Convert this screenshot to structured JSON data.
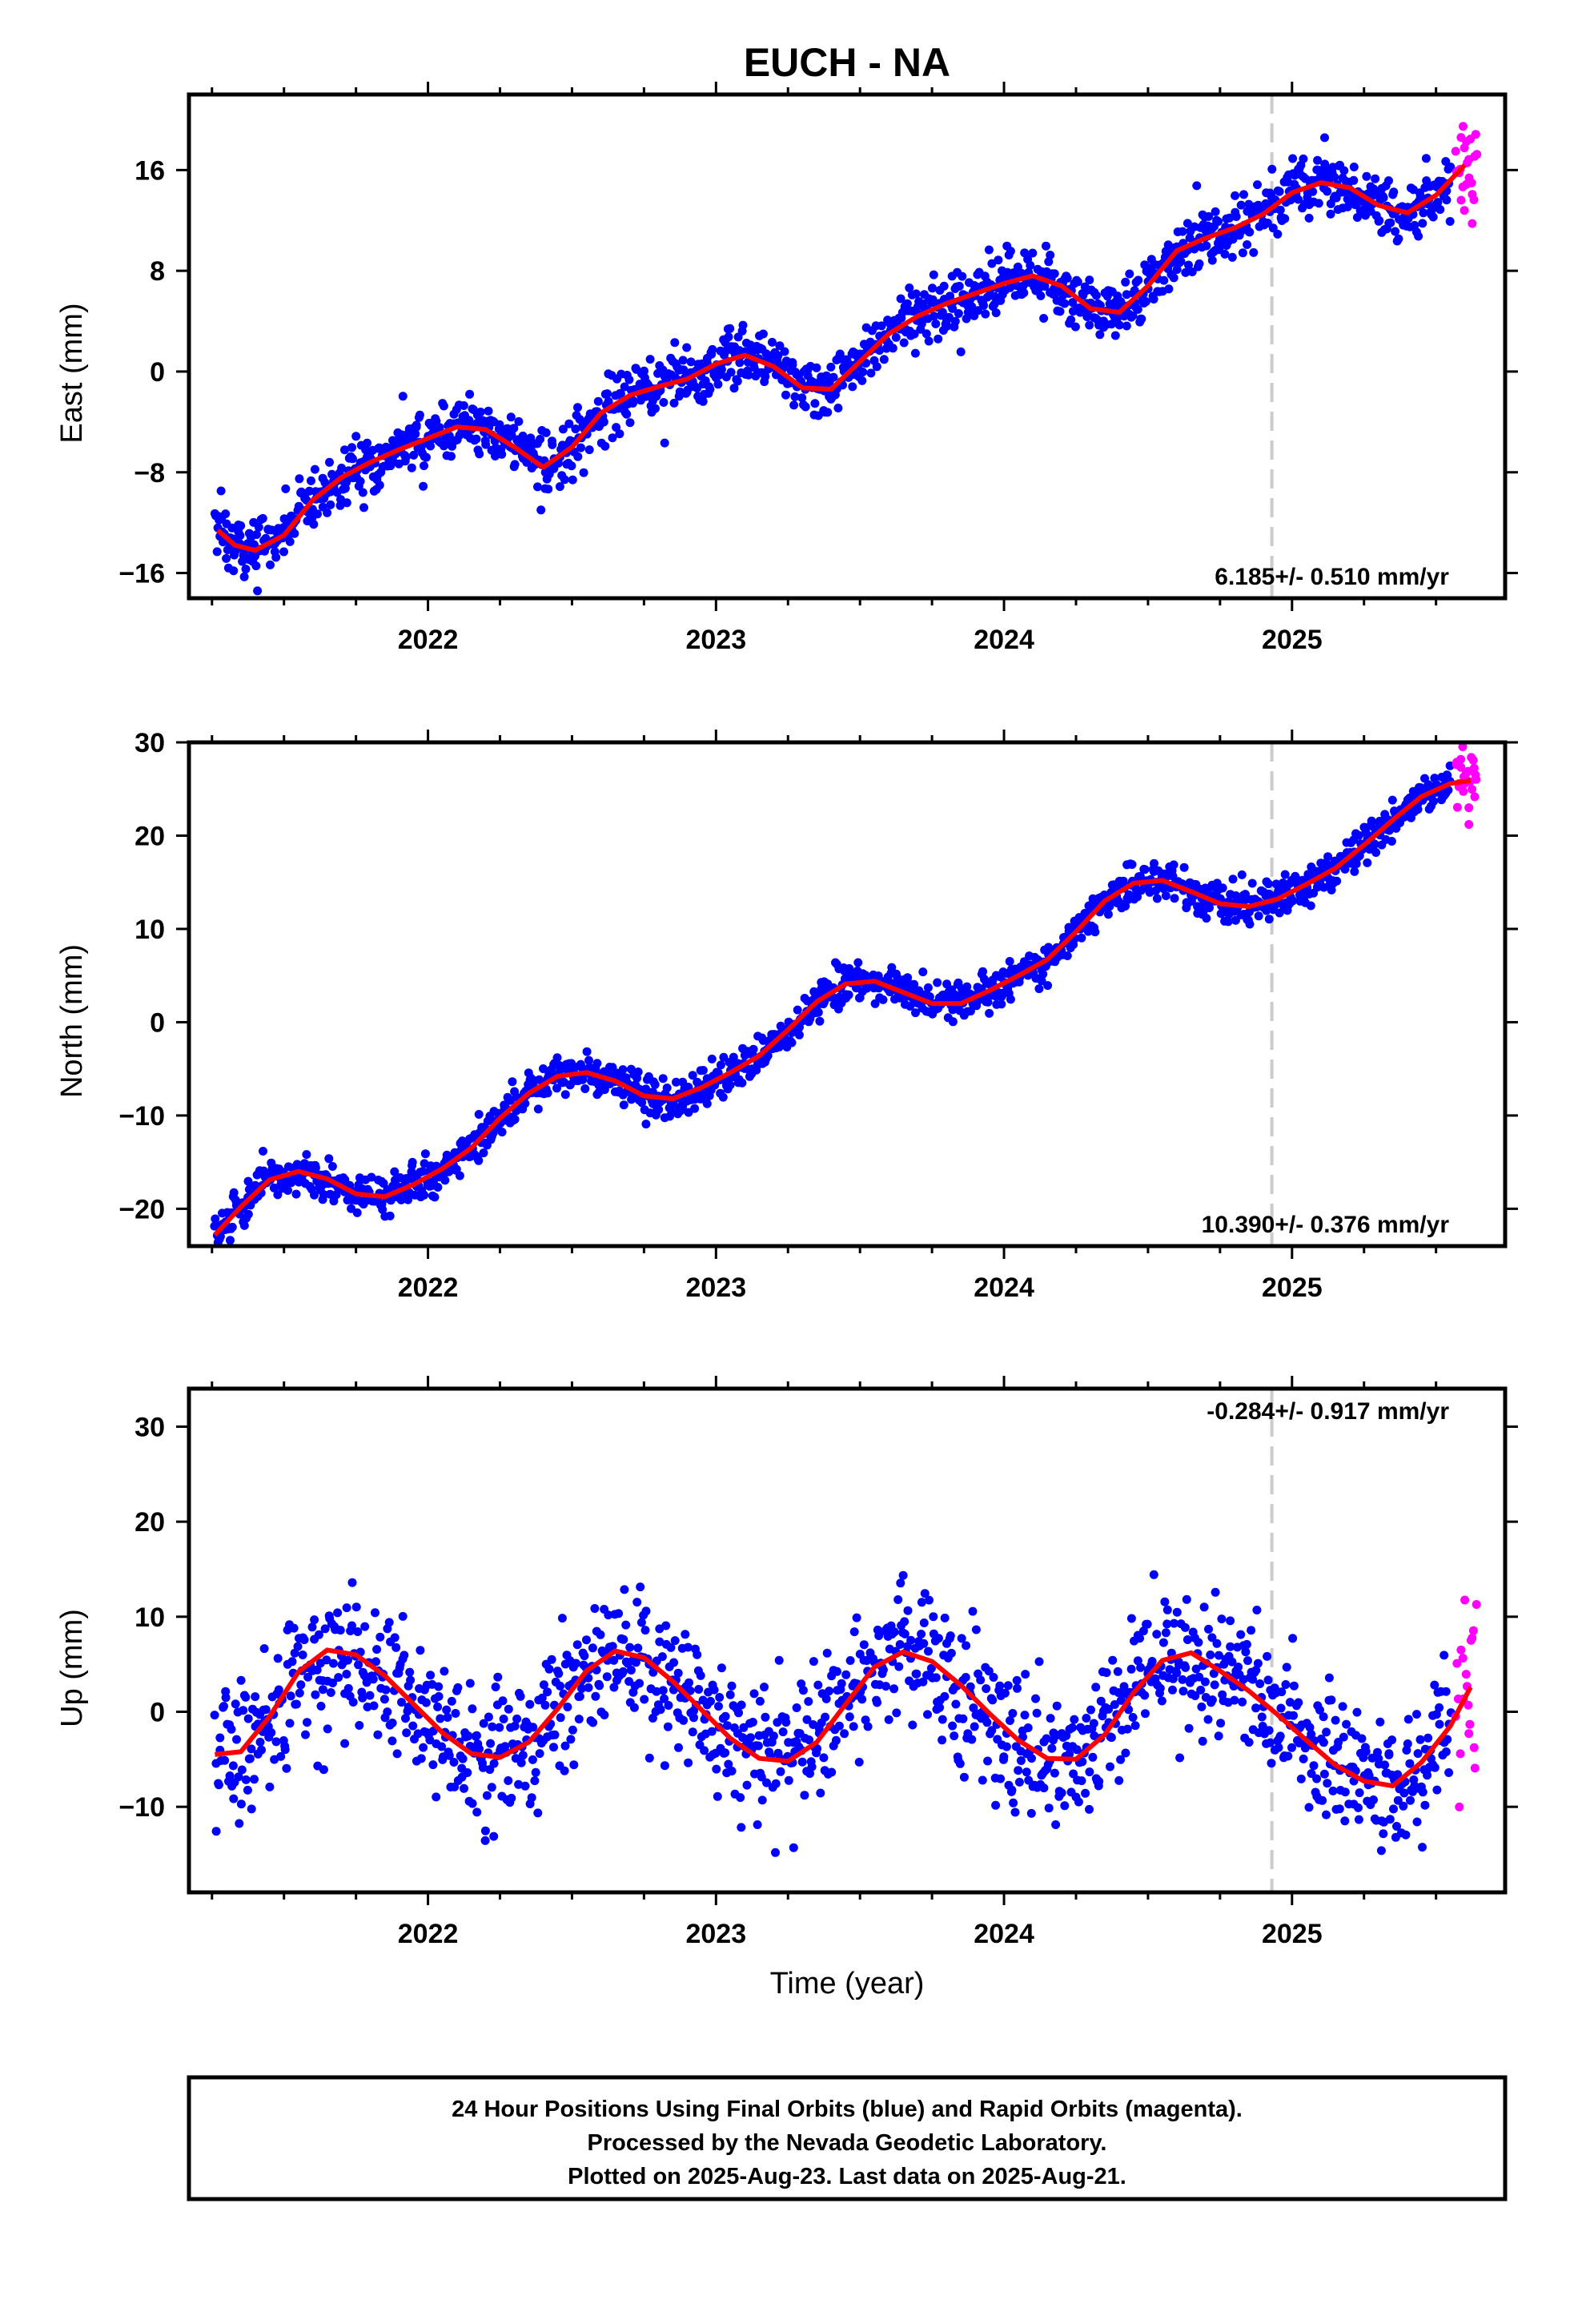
{
  "figure": {
    "title": "EUCH - NA",
    "footer_lines": [
      "24 Hour Positions Using Final Orbits (blue) and Rapid Orbits (magenta).",
      "Processed by the Nevada Geodetic Laboratory.",
      "Plotted on 2025-Aug-23. Last data on 2025-Aug-21."
    ],
    "xlabel": "Time (year)",
    "colors": {
      "final_orbits": "#0000ff",
      "rapid_orbits": "#ff00ff",
      "model_fit": "#ff0000",
      "marker_line": "#cccccc"
    }
  },
  "chart_data": [
    {
      "type": "scatter",
      "panel": "East",
      "ylabel": "East (mm)",
      "rate_text": "6.185+/- 0.510 mm/yr",
      "rate": 6.185,
      "rate_sigma": 0.51,
      "xlim": [
        2021.17,
        2025.74
      ],
      "ylim": [
        -18,
        22
      ],
      "x_ticks": [
        2022,
        2023,
        2024,
        2025
      ],
      "x_tick_labels": [
        "2022",
        "2023",
        "2024",
        "2025"
      ],
      "y_ticks": [
        16,
        8,
        0,
        -8,
        -16
      ],
      "y_tick_labels": [
        "16",
        "8",
        "0",
        "−8",
        "−16"
      ],
      "marker_x": 2024.93,
      "series": [
        {
          "name": "Final orbits",
          "color": "#0000ff",
          "x_range": [
            2021.26,
            2025.55
          ],
          "n_points": 1450,
          "noise_mm": 1.2,
          "trend": "fit"
        },
        {
          "name": "Rapid orbits",
          "color": "#ff00ff",
          "x_range": [
            2025.57,
            2025.64
          ],
          "n_points": 24,
          "noise_mm": 2.0,
          "trend": "fit"
        }
      ],
      "fit_curve": {
        "x": [
          2021.27,
          2021.33,
          2021.4,
          2021.5,
          2021.6,
          2021.7,
          2021.8,
          2021.9,
          2022.0,
          2022.1,
          2022.2,
          2022.3,
          2022.4,
          2022.5,
          2022.6,
          2022.7,
          2022.8,
          2022.9,
          2023.0,
          2023.1,
          2023.2,
          2023.3,
          2023.4,
          2023.5,
          2023.6,
          2023.7,
          2023.8,
          2023.9,
          2024.0,
          2024.1,
          2024.2,
          2024.3,
          2024.4,
          2024.5,
          2024.6,
          2024.7,
          2024.8,
          2024.9,
          2025.0,
          2025.1,
          2025.2,
          2025.3,
          2025.4,
          2025.5,
          2025.6
        ],
        "y": [
          -12.6,
          -13.8,
          -14.2,
          -13.0,
          -10.2,
          -8.4,
          -7.2,
          -6.2,
          -5.3,
          -4.4,
          -4.6,
          -6.0,
          -7.6,
          -6.0,
          -3.3,
          -1.9,
          -1.2,
          -0.6,
          0.6,
          1.3,
          0.4,
          -1.3,
          -1.4,
          0.8,
          3.0,
          4.4,
          5.4,
          6.2,
          7.0,
          7.6,
          6.8,
          5.0,
          4.7,
          6.8,
          9.6,
          10.6,
          11.4,
          12.5,
          14.2,
          15.0,
          14.6,
          13.2,
          12.6,
          14.0,
          16.4
        ]
      }
    },
    {
      "type": "scatter",
      "panel": "North",
      "ylabel": "North (mm)",
      "rate_text": "10.390+/- 0.376 mm/yr",
      "rate": 10.39,
      "rate_sigma": 0.376,
      "xlim": [
        2021.17,
        2025.74
      ],
      "ylim": [
        -24,
        30
      ],
      "x_ticks": [
        2022,
        2023,
        2024,
        2025
      ],
      "x_tick_labels": [
        "2022",
        "2023",
        "2024",
        "2025"
      ],
      "y_ticks": [
        30,
        20,
        10,
        0,
        -10,
        -20
      ],
      "y_tick_labels": [
        "30",
        "20",
        "10",
        "0",
        "−10",
        "−20"
      ],
      "marker_x": 2024.93,
      "series": [
        {
          "name": "Final orbits",
          "color": "#0000ff",
          "x_range": [
            2021.26,
            2025.55
          ],
          "n_points": 1450,
          "noise_mm": 1.0,
          "trend": "fit"
        },
        {
          "name": "Rapid orbits",
          "color": "#ff00ff",
          "x_range": [
            2025.57,
            2025.64
          ],
          "n_points": 24,
          "noise_mm": 1.6,
          "trend": "fit"
        }
      ],
      "fit_curve": {
        "x": [
          2021.26,
          2021.35,
          2021.45,
          2021.55,
          2021.65,
          2021.75,
          2021.85,
          2021.95,
          2022.05,
          2022.15,
          2022.25,
          2022.35,
          2022.45,
          2022.55,
          2022.65,
          2022.75,
          2022.85,
          2022.95,
          2023.05,
          2023.15,
          2023.25,
          2023.35,
          2023.45,
          2023.55,
          2023.65,
          2023.75,
          2023.85,
          2023.95,
          2024.05,
          2024.15,
          2024.25,
          2024.35,
          2024.45,
          2024.55,
          2024.65,
          2024.75,
          2024.85,
          2024.95,
          2025.05,
          2025.15,
          2025.25,
          2025.35,
          2025.45,
          2025.55,
          2025.62
        ],
        "y": [
          -22.8,
          -19.8,
          -16.9,
          -16.0,
          -16.8,
          -18.4,
          -18.7,
          -17.4,
          -15.7,
          -13.5,
          -10.3,
          -7.6,
          -5.8,
          -5.4,
          -6.3,
          -7.9,
          -8.2,
          -7.0,
          -5.4,
          -3.6,
          -0.8,
          2.2,
          4.1,
          4.4,
          3.2,
          2.0,
          2.0,
          3.4,
          5.0,
          6.7,
          9.7,
          13.0,
          14.9,
          15.2,
          14.0,
          12.7,
          12.4,
          13.2,
          14.8,
          16.5,
          19.0,
          21.7,
          24.2,
          25.6,
          25.9
        ]
      }
    },
    {
      "type": "scatter",
      "panel": "Up",
      "ylabel": "Up (mm)",
      "rate_text": "-0.284+/- 0.917 mm/yr",
      "rate": -0.284,
      "rate_sigma": 0.917,
      "xlim": [
        2021.17,
        2025.74
      ],
      "ylim": [
        -19,
        34
      ],
      "x_ticks": [
        2022,
        2023,
        2024,
        2025
      ],
      "x_tick_labels": [
        "2022",
        "2023",
        "2024",
        "2025"
      ],
      "y_ticks": [
        30,
        20,
        10,
        0,
        -10
      ],
      "y_tick_labels": [
        "30",
        "20",
        "10",
        "0",
        "−10"
      ],
      "marker_x": 2024.93,
      "series": [
        {
          "name": "Final orbits",
          "color": "#0000ff",
          "x_range": [
            2021.26,
            2025.55
          ],
          "n_points": 1300,
          "noise_mm": 3.6,
          "trend": "fit"
        },
        {
          "name": "Rapid orbits",
          "color": "#ff00ff",
          "x_range": [
            2025.57,
            2025.64
          ],
          "n_points": 20,
          "noise_mm": 5.0,
          "trend": "fit"
        }
      ],
      "fit_curve": {
        "x": [
          2021.26,
          2021.35,
          2021.45,
          2021.55,
          2021.65,
          2021.75,
          2021.85,
          2021.95,
          2022.05,
          2022.15,
          2022.25,
          2022.35,
          2022.45,
          2022.55,
          2022.65,
          2022.75,
          2022.85,
          2022.95,
          2023.05,
          2023.15,
          2023.25,
          2023.35,
          2023.45,
          2023.55,
          2023.65,
          2023.75,
          2023.85,
          2023.95,
          2024.05,
          2024.15,
          2024.25,
          2024.35,
          2024.45,
          2024.55,
          2024.65,
          2024.75,
          2024.85,
          2024.95,
          2025.05,
          2025.15,
          2025.25,
          2025.35,
          2025.45,
          2025.55,
          2025.62
        ],
        "y": [
          -4.5,
          -4.2,
          -0.5,
          4.2,
          6.5,
          6.0,
          3.8,
          0.8,
          -2.2,
          -4.4,
          -4.8,
          -3.2,
          0.3,
          4.3,
          6.4,
          5.7,
          3.2,
          0.2,
          -2.8,
          -4.9,
          -5.2,
          -3.2,
          0.8,
          4.7,
          6.3,
          5.3,
          2.8,
          -0.2,
          -3.0,
          -4.9,
          -5.0,
          -2.4,
          2.0,
          5.4,
          6.2,
          4.3,
          2.2,
          -0.3,
          -3.0,
          -5.6,
          -7.3,
          -7.8,
          -5.3,
          -1.5,
          2.6
        ]
      }
    }
  ]
}
